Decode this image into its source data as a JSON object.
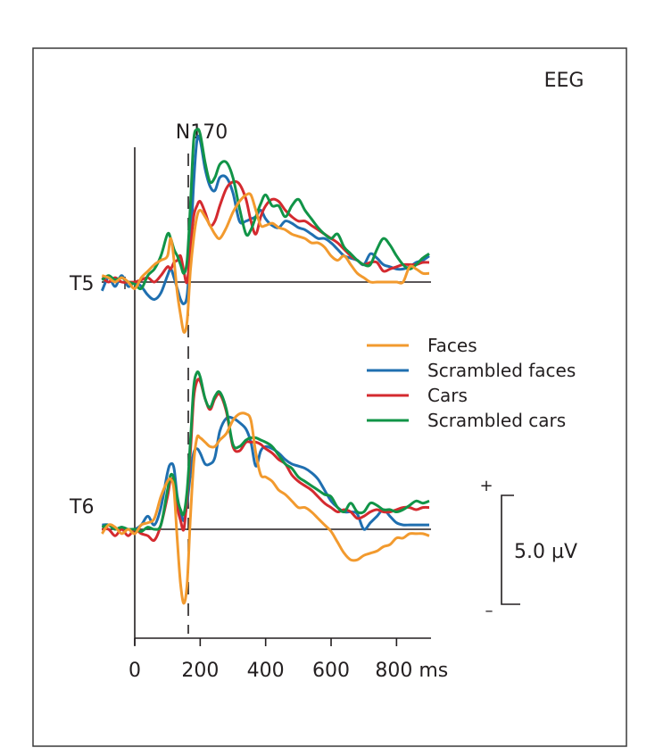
{
  "chart_data": {
    "type": "line",
    "title": "EEG",
    "annotation": "N170",
    "annotation_x_ms": 163,
    "xlabel": "ms",
    "x_unit": "ms",
    "xlim": [
      -100,
      900
    ],
    "x_ticks": [
      0,
      200,
      400,
      600,
      800
    ],
    "x_tick_labels": [
      "0",
      "200",
      "400",
      "600",
      "800 ms"
    ],
    "y_unit": "µV",
    "scale_bar": {
      "value": 5.0,
      "label": "5.0 µV",
      "plus": "+",
      "minus": "–"
    },
    "grid": false,
    "legend_position": "right-center",
    "legend": [
      "Faces",
      "Scrambled faces",
      "Cars",
      "Scrambled cars"
    ],
    "colors": {
      "Faces": "#f29a2e",
      "Scrambled faces": "#1f6fb0",
      "Cars": "#d42a2f",
      "Scrambled cars": "#119447"
    },
    "panels": [
      {
        "electrode": "T5",
        "x": [
          -100,
          -80,
          -60,
          -40,
          -20,
          0,
          20,
          40,
          60,
          80,
          100,
          110,
          120,
          130,
          140,
          150,
          160,
          170,
          180,
          190,
          200,
          215,
          230,
          245,
          260,
          280,
          300,
          320,
          340,
          355,
          370,
          385,
          400,
          420,
          440,
          460,
          480,
          500,
          520,
          540,
          560,
          580,
          600,
          620,
          640,
          660,
          680,
          700,
          720,
          740,
          760,
          780,
          800,
          820,
          840,
          860,
          880,
          900
        ],
        "series": [
          {
            "name": "Faces",
            "values": [
              0.3,
              0.2,
              0.0,
              0.2,
              0.0,
              -0.3,
              0.2,
              0.5,
              0.8,
              1.0,
              1.2,
              2.0,
              1.0,
              -0.5,
              -1.5,
              -2.3,
              -1.8,
              0.5,
              2.0,
              3.0,
              3.3,
              3.0,
              2.6,
              2.2,
              2.0,
              2.5,
              3.2,
              3.7,
              4.0,
              4.0,
              3.3,
              2.6,
              2.6,
              2.7,
              2.5,
              2.4,
              2.2,
              2.1,
              2.0,
              1.8,
              1.8,
              1.6,
              1.2,
              1.0,
              1.2,
              0.8,
              0.4,
              0.2,
              0.0,
              0.0,
              0.0,
              0.0,
              0.0,
              0.0,
              0.7,
              0.6,
              0.4,
              0.4
            ]
          },
          {
            "name": "Scrambled faces",
            "values": [
              -0.4,
              0.2,
              -0.2,
              0.3,
              -0.2,
              0.0,
              -0.2,
              -0.6,
              -0.8,
              -0.5,
              0.3,
              0.6,
              0.2,
              -0.3,
              -0.8,
              -1.0,
              -0.6,
              1.5,
              4.5,
              6.5,
              6.5,
              5.2,
              4.4,
              4.2,
              4.8,
              4.8,
              4.1,
              2.8,
              2.8,
              2.9,
              3.0,
              3.3,
              2.9,
              2.6,
              2.5,
              2.8,
              2.7,
              2.5,
              2.4,
              2.2,
              2.0,
              2.0,
              1.8,
              1.5,
              1.2,
              1.1,
              1.0,
              0.8,
              1.3,
              1.1,
              0.8,
              0.7,
              0.6,
              0.6,
              0.7,
              0.9,
              1.0,
              1.2
            ]
          },
          {
            "name": "Cars",
            "values": [
              0.2,
              0.0,
              0.2,
              0.0,
              0.0,
              0.0,
              0.1,
              0.2,
              0.0,
              0.3,
              0.7,
              0.6,
              0.9,
              1.0,
              1.2,
              0.5,
              0.0,
              1.5,
              3.0,
              3.5,
              3.7,
              3.2,
              2.6,
              2.8,
              3.5,
              4.3,
              4.6,
              4.5,
              3.8,
              2.8,
              2.2,
              3.0,
              3.5,
              3.8,
              3.7,
              3.3,
              3.0,
              2.8,
              2.8,
              2.6,
              2.4,
              2.2,
              2.0,
              1.8,
              1.5,
              1.2,
              1.0,
              0.8,
              0.9,
              0.9,
              0.5,
              0.6,
              0.7,
              0.8,
              0.8,
              0.8,
              0.9,
              0.9
            ]
          },
          {
            "name": "Scrambled cars",
            "values": [
              0.1,
              0.3,
              0.1,
              0.2,
              0.0,
              -0.1,
              -0.3,
              0.3,
              0.6,
              1.2,
              2.2,
              2.0,
              1.5,
              1.2,
              0.8,
              0.4,
              1.0,
              3.5,
              6.5,
              7.0,
              6.8,
              5.5,
              4.6,
              4.8,
              5.4,
              5.5,
              4.8,
              3.4,
              2.2,
              2.4,
              3.0,
              3.6,
              4.0,
              3.5,
              3.5,
              3.0,
              3.5,
              3.8,
              3.3,
              2.9,
              2.5,
              2.2,
              2.0,
              2.2,
              1.6,
              1.3,
              1.0,
              0.8,
              0.8,
              1.5,
              2.0,
              1.7,
              1.2,
              0.8,
              0.6,
              0.8,
              1.1,
              1.3
            ]
          }
        ]
      },
      {
        "electrode": "T6",
        "x": [
          -100,
          -80,
          -60,
          -40,
          -20,
          0,
          20,
          40,
          60,
          80,
          100,
          110,
          120,
          130,
          140,
          150,
          160,
          170,
          180,
          190,
          200,
          215,
          230,
          245,
          260,
          280,
          300,
          320,
          340,
          355,
          370,
          385,
          400,
          420,
          440,
          460,
          480,
          500,
          520,
          540,
          560,
          580,
          600,
          620,
          640,
          660,
          680,
          700,
          720,
          740,
          760,
          780,
          800,
          820,
          840,
          860,
          880,
          900
        ],
        "series": [
          {
            "name": "Faces",
            "values": [
              -0.2,
              0.2,
              0.1,
              -0.2,
              0.0,
              -0.2,
              0.2,
              0.3,
              0.5,
              1.5,
              2.2,
              2.3,
              1.8,
              -0.5,
              -2.5,
              -3.4,
              -2.5,
              0.5,
              3.0,
              4.2,
              4.2,
              4.0,
              3.8,
              3.8,
              4.1,
              4.4,
              5.0,
              5.3,
              5.3,
              5.0,
              3.5,
              2.5,
              2.4,
              2.2,
              1.8,
              1.6,
              1.3,
              1.0,
              1.0,
              0.8,
              0.5,
              0.2,
              -0.1,
              -0.6,
              -1.1,
              -1.4,
              -1.4,
              -1.2,
              -1.1,
              -1.0,
              -0.8,
              -0.7,
              -0.4,
              -0.4,
              -0.2,
              -0.2,
              -0.2,
              -0.3
            ]
          },
          {
            "name": "Scrambled faces",
            "values": [
              0.2,
              0.2,
              0.0,
              0.1,
              0.0,
              0.0,
              0.2,
              0.6,
              0.2,
              1.0,
              2.6,
              3.0,
              2.8,
              1.5,
              0.8,
              0.4,
              1.2,
              2.5,
              3.5,
              3.7,
              3.5,
              3.0,
              3.0,
              3.3,
              4.5,
              5.1,
              5.1,
              4.9,
              4.6,
              4.0,
              2.9,
              3.6,
              3.8,
              3.7,
              3.5,
              3.2,
              3.0,
              2.9,
              2.8,
              2.6,
              2.3,
              1.8,
              1.3,
              1.0,
              0.8,
              0.8,
              0.7,
              0.0,
              0.3,
              0.6,
              0.9,
              0.6,
              0.3,
              0.2,
              0.2,
              0.2,
              0.2,
              0.2
            ]
          },
          {
            "name": "Cars",
            "values": [
              0.0,
              0.0,
              -0.3,
              0.0,
              -0.3,
              0.0,
              -0.2,
              -0.3,
              -0.5,
              0.2,
              1.5,
              2.3,
              2.0,
              1.0,
              0.4,
              0.0,
              1.5,
              3.5,
              6.0,
              6.8,
              6.8,
              6.0,
              5.5,
              6.0,
              6.2,
              5.4,
              3.8,
              3.6,
              4.0,
              4.0,
              4.0,
              3.9,
              3.7,
              3.5,
              3.2,
              3.0,
              2.5,
              2.2,
              2.0,
              1.8,
              1.5,
              1.2,
              1.0,
              0.8,
              0.9,
              0.8,
              0.5,
              0.6,
              0.8,
              0.9,
              0.8,
              0.8,
              0.9,
              1.0,
              1.0,
              0.9,
              1.0,
              1.0
            ]
          },
          {
            "name": "Scrambled cars",
            "values": [
              0.1,
              0.2,
              0.0,
              0.1,
              0.0,
              0.0,
              -0.1,
              0.1,
              0.0,
              0.2,
              1.8,
              2.5,
              2.3,
              1.4,
              0.9,
              0.7,
              1.8,
              4.0,
              6.5,
              7.2,
              7.0,
              6.0,
              5.6,
              6.1,
              6.3,
              5.5,
              3.9,
              3.8,
              4.1,
              4.2,
              4.2,
              4.1,
              4.0,
              3.8,
              3.4,
              3.0,
              2.8,
              2.4,
              2.2,
              2.0,
              1.8,
              1.6,
              1.5,
              1.0,
              0.8,
              1.2,
              0.8,
              0.8,
              1.2,
              1.1,
              0.9,
              0.9,
              0.8,
              0.9,
              1.1,
              1.3,
              1.2,
              1.3
            ]
          }
        ]
      }
    ]
  }
}
